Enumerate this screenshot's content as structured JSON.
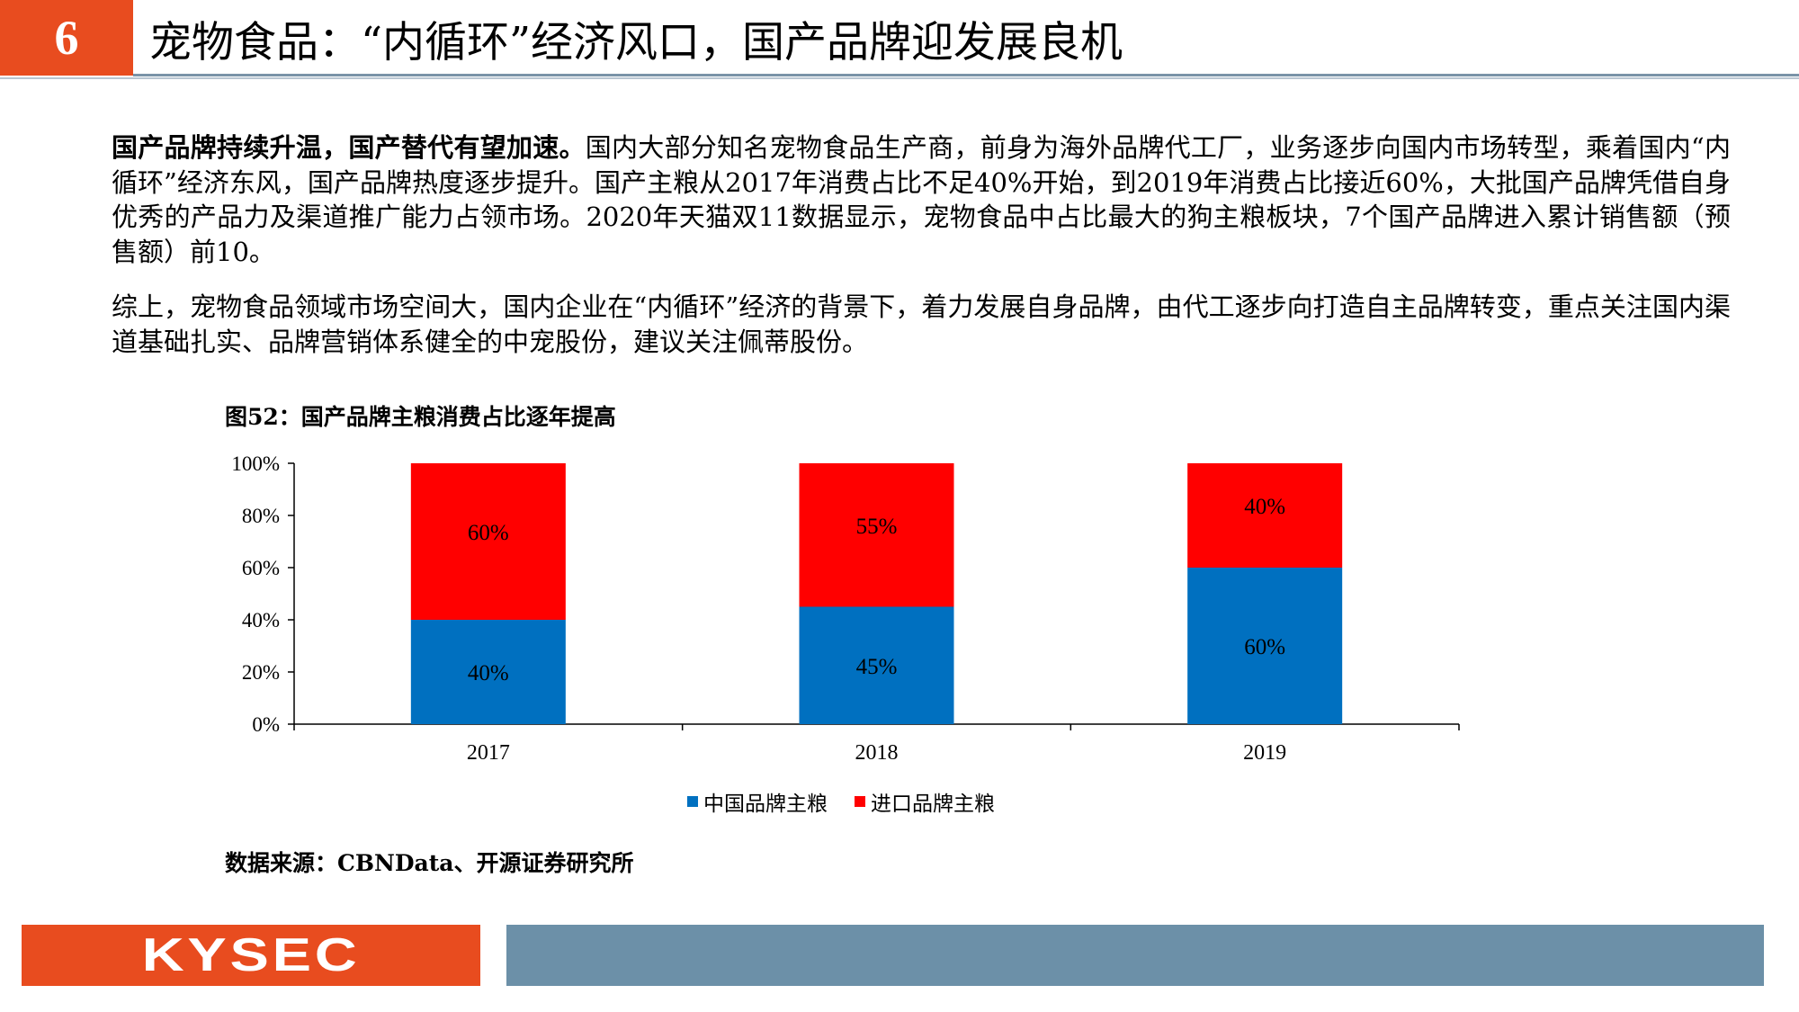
{
  "header": {
    "number": "6",
    "title": "宠物食品：“内循环”经济风口，国产品牌迎发展良机"
  },
  "paragraph1": {
    "lead": "国产品牌持续升温，国产替代有望加速。",
    "body": "国内大部分知名宠物食品生产商，前身为海外品牌代工厂，业务逐步向国内市场转型，乘着国内“内循环”经济东风，国产品牌热度逐步提升。国产主粮从2017年消费占比不足40%开始，到2019年消费占比接近60%，大批国产品牌凭借自身优秀的产品力及渠道推广能力占领市场。2020年天猫双11数据显示，宠物食品中占比最大的狗主粮板块，7个国产品牌进入累计销售额（预售额）前10。"
  },
  "paragraph2": "综上，宠物食品领域市场空间大，国内企业在“内循环”经济的背景下，着力发展自身品牌，由代工逐步向打造自主品牌转变，重点关注国内渠道基础扎实、品牌营销体系健全的中宠股份，建议关注佩蒂股份。",
  "figure": {
    "title": "图52：国产品牌主粮消费占比逐年提高",
    "source": "数据来源：CBNData、开源证券研究所"
  },
  "chart_data": {
    "type": "bar",
    "stacked": true,
    "categories": [
      "2017",
      "2018",
      "2019"
    ],
    "series": [
      {
        "name": "中国品牌主粮",
        "values": [
          40,
          45,
          60
        ],
        "labels": [
          "40%",
          "45%",
          "60%"
        ],
        "color": "#0070c0"
      },
      {
        "name": "进口品牌主粮",
        "values": [
          60,
          55,
          40
        ],
        "labels": [
          "60%",
          "55%",
          "40%"
        ],
        "color": "#ff0000"
      }
    ],
    "ylim": [
      0,
      100
    ],
    "yticks": [
      0,
      20,
      40,
      60,
      80,
      100
    ],
    "ytick_labels": [
      "0%",
      "20%",
      "40%",
      "60%",
      "80%",
      "100%"
    ],
    "legend_position": "bottom",
    "grid": false
  },
  "footer": {
    "logo": "KYSEC",
    "logo_color": "#e84c1f",
    "bar_color": "#6c90a8"
  }
}
